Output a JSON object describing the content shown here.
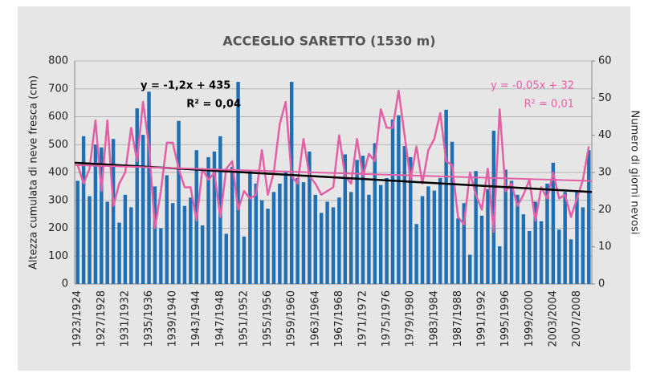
{
  "chart_data": {
    "type": "bar_line",
    "title": "ACCEGLIO SARETTO (1530 m)",
    "ylabel": "Altezza cumulata di neve fresca (cm)",
    "y2label": "Numero di giorni nevosi",
    "categories": [
      "1923/1924",
      null,
      null,
      null,
      "1927/1928",
      null,
      null,
      null,
      "1931/1932",
      null,
      null,
      null,
      "1935/1936",
      null,
      null,
      null,
      "1939/1940",
      null,
      null,
      null,
      "1943/1944",
      null,
      null,
      null,
      "1947/1948",
      null,
      null,
      null,
      "1951/1952",
      null,
      null,
      null,
      "1955/1956",
      null,
      null,
      null,
      "1959/1960",
      null,
      null,
      null,
      "1963/1964",
      null,
      null,
      null,
      "1967/1968",
      null,
      null,
      null,
      "1971/1972",
      null,
      null,
      null,
      "1975/1976",
      null,
      null,
      null,
      "1979/1980",
      null,
      null,
      null,
      "1983/1984",
      null,
      null,
      null,
      "1987/1988",
      null,
      null,
      null,
      "1991/1992",
      null,
      null,
      null,
      "1995/1996",
      null,
      null,
      null,
      "1999/2000",
      null,
      null,
      null,
      "2003/2004",
      null,
      null,
      null,
      "2007/2008",
      null,
      null
    ],
    "series": [
      {
        "type": "bar",
        "color": "#1f6fb2",
        "values": [
          370,
          530,
          315,
          500,
          490,
          295,
          520,
          220,
          320,
          275,
          630,
          535,
          690,
          350,
          200,
          390,
          290,
          585,
          280,
          310,
          480,
          210,
          455,
          475,
          530,
          180,
          420,
          725,
          170,
          405,
          360,
          300,
          270,
          330,
          360,
          400,
          725,
          380,
          365,
          475,
          320,
          255,
          295,
          275,
          310,
          465,
          330,
          445,
          460,
          320,
          505,
          355,
          380,
          590,
          605,
          495,
          455,
          215,
          315,
          350,
          335,
          380,
          625,
          510,
          235,
          290,
          105,
          405,
          245,
          340,
          550,
          135,
          410,
          370,
          320,
          250,
          190,
          295,
          225,
          360,
          435,
          195,
          330,
          160,
          335,
          275,
          480
        ]
      },
      {
        "type": "line",
        "axis": "y2",
        "color": "#e35fa6",
        "values": [
          32,
          27,
          31,
          44,
          25,
          44,
          21,
          27,
          30,
          42,
          33,
          49,
          37,
          15,
          25,
          38,
          38,
          31,
          26,
          26,
          17,
          31,
          28,
          30,
          18,
          31,
          33,
          20,
          25,
          23,
          24,
          36,
          24,
          30,
          43,
          49,
          29,
          27,
          39,
          29,
          27,
          24,
          25,
          26,
          40,
          29,
          27,
          39,
          29,
          35,
          33,
          47,
          42,
          42,
          52,
          40,
          28,
          37,
          27,
          36,
          39,
          46,
          33,
          32,
          18,
          16,
          30,
          24,
          20,
          31,
          14,
          47,
          25,
          27,
          21,
          24,
          28,
          17,
          26,
          23,
          30,
          23,
          24,
          18,
          23,
          28,
          37
        ]
      }
    ],
    "trends": [
      {
        "equation": "y = -1,2x + 435",
        "r2": "R² = 0,04",
        "color": "#000000",
        "start": 435,
        "end": 330
      },
      {
        "equation": "y = -0,05x + 32",
        "r2": "R² = 0,01",
        "color": "#e35fa6",
        "axis": "y2",
        "start": 32,
        "end": 27.7
      }
    ],
    "ylim": [
      0,
      800
    ],
    "yticks": [
      0,
      100,
      200,
      300,
      400,
      500,
      600,
      700,
      800
    ],
    "y2lim": [
      0,
      60
    ],
    "y2ticks": [
      0,
      10,
      20,
      30,
      40,
      50,
      60
    ],
    "grid": true
  }
}
